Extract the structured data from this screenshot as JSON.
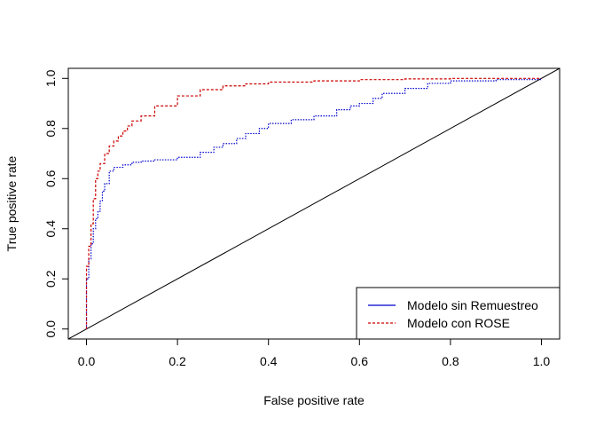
{
  "chart_data": {
    "type": "line",
    "title": "",
    "xlabel": "False positive rate",
    "ylabel": "True positive rate",
    "xlim": [
      -0.04,
      1.04
    ],
    "ylim": [
      -0.04,
      1.04
    ],
    "xticks": [
      0.0,
      0.2,
      0.4,
      0.6,
      0.8,
      1.0
    ],
    "yticks": [
      0.0,
      0.2,
      0.4,
      0.6,
      0.8,
      1.0
    ],
    "xtick_labels": [
      "0.0",
      "0.2",
      "0.4",
      "0.6",
      "0.8",
      "1.0"
    ],
    "ytick_labels": [
      "0.0",
      "0.2",
      "0.4",
      "0.6",
      "0.8",
      "1.0"
    ],
    "grid": false,
    "legend_position": "bottom-right",
    "reference_line": {
      "x": [
        0,
        1
      ],
      "y": [
        0,
        1
      ],
      "color": "#000000"
    },
    "series": [
      {
        "name": "Modelo sin Remuestreo",
        "color": "#0000cc",
        "style": "dotted",
        "x": [
          0.0,
          0.0,
          0.005,
          0.01,
          0.015,
          0.02,
          0.025,
          0.03,
          0.035,
          0.04,
          0.05,
          0.06,
          0.08,
          0.1,
          0.12,
          0.15,
          0.2,
          0.25,
          0.28,
          0.3,
          0.33,
          0.35,
          0.38,
          0.4,
          0.45,
          0.5,
          0.55,
          0.58,
          0.6,
          0.63,
          0.65,
          0.7,
          0.75,
          0.8,
          0.9,
          1.0
        ],
        "y": [
          0.0,
          0.2,
          0.28,
          0.34,
          0.4,
          0.44,
          0.47,
          0.51,
          0.55,
          0.58,
          0.63,
          0.645,
          0.655,
          0.665,
          0.67,
          0.675,
          0.685,
          0.705,
          0.725,
          0.74,
          0.76,
          0.78,
          0.8,
          0.82,
          0.835,
          0.85,
          0.875,
          0.89,
          0.9,
          0.92,
          0.94,
          0.96,
          0.98,
          0.99,
          0.995,
          1.0
        ]
      },
      {
        "name": "Modelo con ROSE",
        "color": "#cc0000",
        "style": "dashed",
        "x": [
          0.0,
          0.0,
          0.005,
          0.01,
          0.015,
          0.02,
          0.025,
          0.03,
          0.04,
          0.05,
          0.06,
          0.07,
          0.08,
          0.09,
          0.1,
          0.12,
          0.15,
          0.2,
          0.25,
          0.3,
          0.35,
          0.4,
          0.5,
          0.6,
          0.7,
          0.8,
          1.0
        ],
        "y": [
          0.0,
          0.25,
          0.33,
          0.42,
          0.52,
          0.6,
          0.63,
          0.66,
          0.7,
          0.73,
          0.75,
          0.77,
          0.79,
          0.81,
          0.83,
          0.85,
          0.89,
          0.93,
          0.955,
          0.97,
          0.978,
          0.985,
          0.99,
          0.995,
          0.998,
          1.0,
          1.0
        ]
      }
    ]
  }
}
